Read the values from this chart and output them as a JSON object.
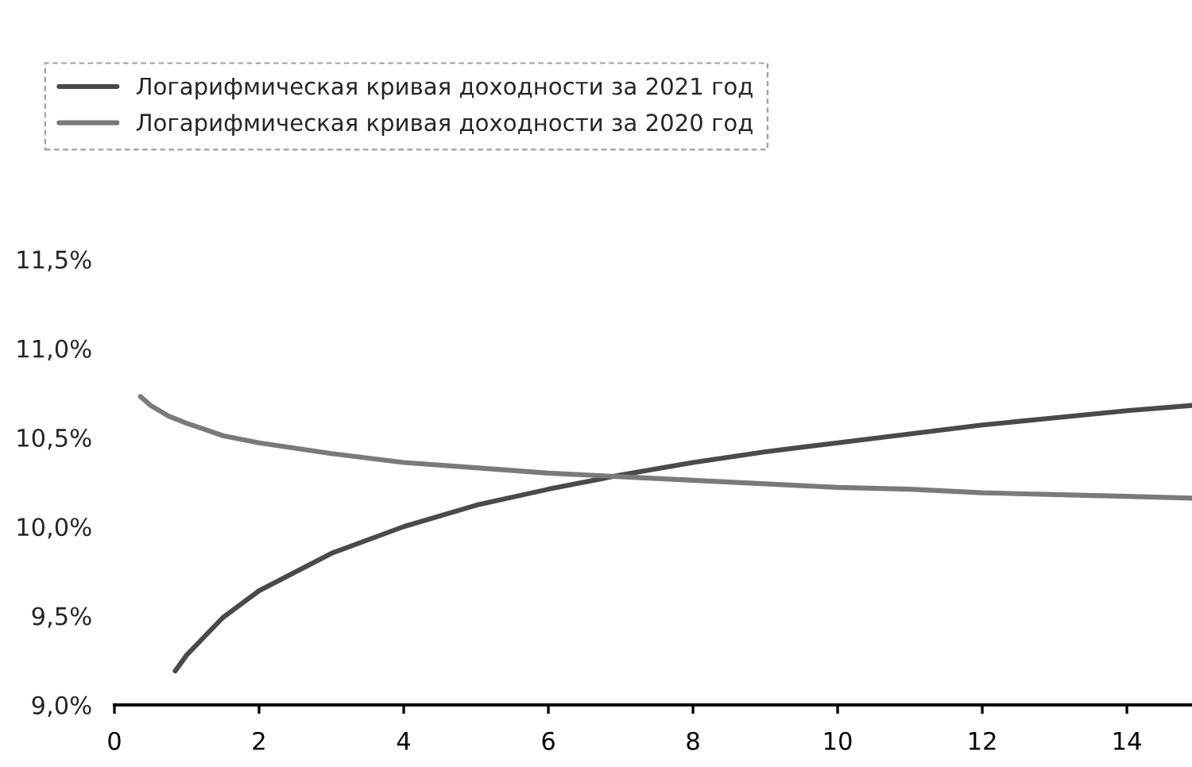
{
  "chart_data": {
    "type": "line",
    "xlim": [
      0,
      14.9
    ],
    "xticks": [
      0,
      2,
      4,
      6,
      8,
      10,
      12,
      14
    ],
    "ylim": [
      9.0,
      11.5
    ],
    "yticks": [
      {
        "value": 9.0,
        "label": "9,0%"
      },
      {
        "value": 9.5,
        "label": "9,5%"
      },
      {
        "value": 10.0,
        "label": "10,0%"
      },
      {
        "value": 10.5,
        "label": "10,5%"
      },
      {
        "value": 11.0,
        "label": "11,0%"
      },
      {
        "value": 11.5,
        "label": "11,5%"
      }
    ],
    "grid": false,
    "legend": "top left",
    "line_style": "solid",
    "marker": "none",
    "series": [
      {
        "name": "Логарифмическая кривая доходности за 2021 год",
        "color": "#4a4a4a",
        "x": [
          0.84,
          1,
          1.5,
          2,
          3,
          4,
          5,
          6,
          7,
          8,
          9,
          10,
          11,
          12,
          13,
          14,
          14.9
        ],
        "values": [
          9.19,
          9.28,
          9.49,
          9.64,
          9.85,
          10.0,
          10.12,
          10.21,
          10.29,
          10.36,
          10.42,
          10.47,
          10.52,
          10.57,
          10.61,
          10.65,
          10.68
        ]
      },
      {
        "name": "Логарифмическая кривая доходности за 2020 год",
        "color": "#7a7a7a",
        "x": [
          0.36,
          0.5,
          0.75,
          1,
          1.5,
          2,
          3,
          4,
          5,
          6,
          7,
          8,
          9,
          10,
          11,
          12,
          13,
          14,
          14.9
        ],
        "values": [
          10.73,
          10.68,
          10.62,
          10.58,
          10.51,
          10.47,
          10.41,
          10.36,
          10.33,
          10.3,
          10.28,
          10.26,
          10.24,
          10.22,
          10.21,
          10.19,
          10.18,
          10.17,
          10.16
        ]
      }
    ]
  }
}
